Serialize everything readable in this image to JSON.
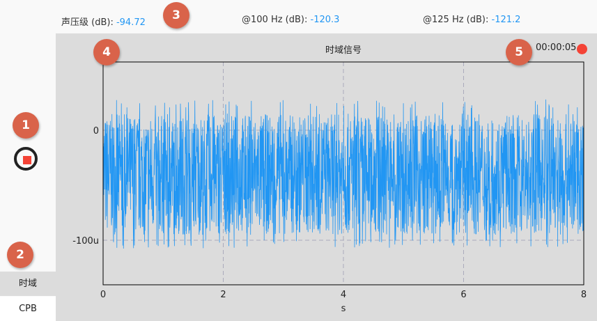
{
  "readouts": [
    {
      "label": "声压级 (dB): ",
      "value": "-94.72"
    },
    {
      "label": "@100 Hz (dB): ",
      "value": "-120.3"
    },
    {
      "label": "@125 Hz (dB): ",
      "value": "-121.2"
    }
  ],
  "sidebar": {
    "tabs": [
      {
        "label": "时域",
        "active": true
      },
      {
        "label": "CPB",
        "active": false
      }
    ],
    "record_button": "stop-icon"
  },
  "badges": [
    "1",
    "2",
    "3",
    "4",
    "5"
  ],
  "colors": {
    "signal": "#2196f3",
    "badge": "#d9634a",
    "record": "#f44336"
  },
  "chart": {
    "title": "时域信号",
    "timer": "00:00:05"
  },
  "chart_data": {
    "type": "line",
    "title": "时域信号",
    "xlabel": "s",
    "ylabel": "",
    "xlim": [
      0,
      8
    ],
    "ylim": [
      6.2e-05,
      -0.0001405
    ],
    "xticks": [
      "0",
      "2",
      "4",
      "6",
      "8"
    ],
    "yticks": [
      {
        "value": 0,
        "label": "0"
      },
      {
        "value": -0.0001,
        "label": "-100u"
      }
    ],
    "grid": "vertical dashed",
    "series": [
      {
        "description_values": "noise",
        "mean": -4e-05,
        "min": -0.000108,
        "max": 2.5e-05
      }
    ]
  }
}
